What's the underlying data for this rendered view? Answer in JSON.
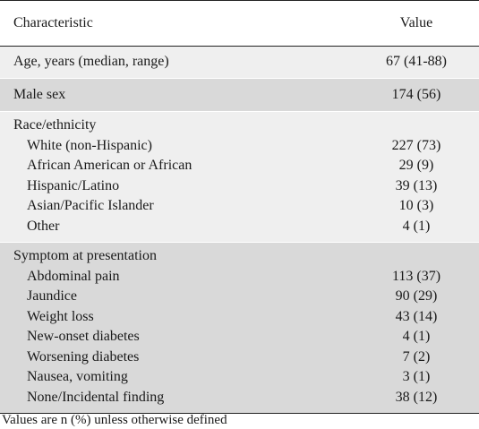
{
  "header": {
    "characteristic": "Characteristic",
    "value": "Value"
  },
  "rows": {
    "age": {
      "label": "Age, years (median, range)",
      "value": "67 (41-88)"
    },
    "male": {
      "label": "Male sex",
      "value": "174 (56)"
    }
  },
  "race": {
    "heading": "Race/ethnicity",
    "items": [
      {
        "label": "White (non-Hispanic)",
        "value": "227 (73)"
      },
      {
        "label": "African American or African",
        "value": "29 (9)"
      },
      {
        "label": "Hispanic/Latino",
        "value": "39 (13)"
      },
      {
        "label": "Asian/Pacific Islander",
        "value": "10 (3)"
      },
      {
        "label": "Other",
        "value": "4 (1)"
      }
    ]
  },
  "symptom": {
    "heading": "Symptom at presentation",
    "items": [
      {
        "label": "Abdominal pain",
        "value": "113 (37)"
      },
      {
        "label": "Jaundice",
        "value": "90 (29)"
      },
      {
        "label": "Weight loss",
        "value": "43 (14)"
      },
      {
        "label": "New-onset diabetes",
        "value": "4 (1)"
      },
      {
        "label": "Worsening diabetes",
        "value": "7 (2)"
      },
      {
        "label": "Nausea, vomiting",
        "value": "3 (1)"
      },
      {
        "label": "None/Incidental finding",
        "value": "38 (12)"
      }
    ]
  },
  "footnote": "Values are n (%) unless otherwise defined",
  "colors": {
    "light_band": "#efefef",
    "dark_band": "#d9d9d9",
    "rule": "#222222"
  }
}
